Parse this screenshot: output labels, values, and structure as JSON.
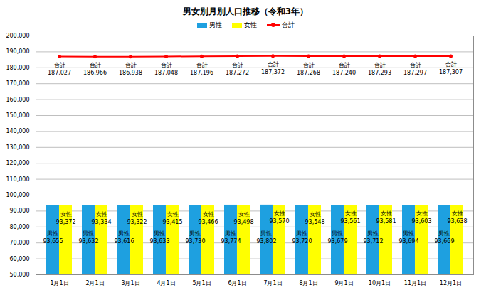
{
  "chart_data": {
    "type": "bar",
    "title": "男女別月別人口推移（令和3年）",
    "categories": [
      "1月1日",
      "2月1日",
      "3月1日",
      "4月1日",
      "5月1日",
      "6月1日",
      "7月1日",
      "8月1日",
      "9月1日",
      "10月1日",
      "11月1日",
      "12月1日"
    ],
    "series": [
      {
        "name": "男性",
        "type": "bar",
        "color": "#1ea0e0",
        "values": [
          93655,
          93632,
          93616,
          93633,
          93730,
          93774,
          93802,
          93720,
          93679,
          93712,
          93694,
          93669
        ],
        "value_labels": [
          "93,655",
          "93,632",
          "93,616",
          "93,633",
          "93,730",
          "93,774",
          "93,802",
          "93,720",
          "93,679",
          "93,712",
          "93,694",
          "93,669"
        ]
      },
      {
        "name": "女性",
        "type": "bar",
        "color": "#ffff00",
        "values": [
          93372,
          93334,
          93322,
          93415,
          93466,
          93498,
          93570,
          93548,
          93561,
          93581,
          93603,
          93638
        ],
        "value_labels": [
          "93,372",
          "93,334",
          "93,322",
          "93,415",
          "93,466",
          "93,498",
          "93,570",
          "93,548",
          "93,561",
          "93,581",
          "93,603",
          "93,638"
        ]
      },
      {
        "name": "合計",
        "type": "line",
        "color": "#ff0000",
        "marker": "circle",
        "values": [
          187027,
          186966,
          186938,
          187048,
          187196,
          187272,
          187372,
          187268,
          187240,
          187293,
          187297,
          187307
        ],
        "value_labels": [
          "187,027",
          "186,966",
          "186,938",
          "187,048",
          "187,196",
          "187,272",
          "187,372",
          "187,268",
          "187,240",
          "187,293",
          "187,297",
          "187,307"
        ]
      }
    ],
    "ylim": [
      50000,
      200000
    ],
    "yticks": [
      {
        "value": 50000,
        "label": "50,000"
      },
      {
        "value": 60000,
        "label": "60,000"
      },
      {
        "value": 70000,
        "label": "70,000"
      },
      {
        "value": 80000,
        "label": "80,000"
      },
      {
        "value": 90000,
        "label": "90,000"
      },
      {
        "value": 100000,
        "label": "100,000"
      },
      {
        "value": 110000,
        "label": "110,000"
      },
      {
        "value": 120000,
        "label": "120,000"
      },
      {
        "value": 130000,
        "label": "130,000"
      },
      {
        "value": 140000,
        "label": "140,000"
      },
      {
        "value": 150000,
        "label": "150,000"
      },
      {
        "value": 160000,
        "label": "160,000"
      },
      {
        "value": 170000,
        "label": "170,000"
      },
      {
        "value": 180000,
        "label": "180,000"
      },
      {
        "value": 190000,
        "label": "190,000"
      },
      {
        "value": 200000,
        "label": "200,000"
      }
    ],
    "grid": true,
    "legend": "top",
    "data_labels": true
  }
}
